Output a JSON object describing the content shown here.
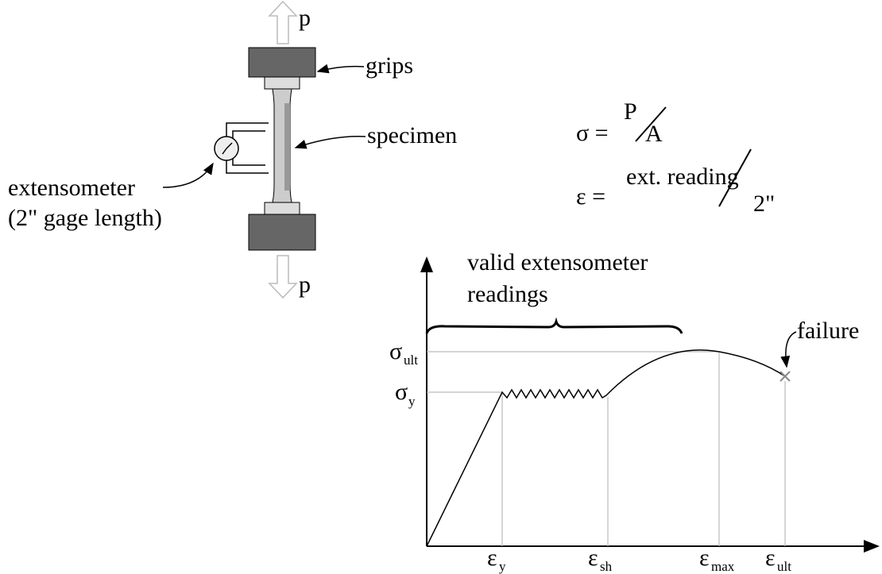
{
  "specimen": {
    "load_top": "p",
    "load_bottom": "p",
    "grips": "grips",
    "specimen": "specimen",
    "extensometer": "extensometer",
    "gage_length": "(2\" gage length)"
  },
  "formulas": [
    {
      "lhs": "σ =",
      "numerator": "P",
      "denominator": "A"
    },
    {
      "lhs": "ε =",
      "numerator": "ext. reading",
      "denominator": "2\""
    }
  ],
  "graph": {
    "annotation": [
      "valid extensometer",
      "readings"
    ],
    "failure": "failure",
    "y_labels": [
      {
        "symbol": "σ",
        "subscript": "ult"
      },
      {
        "symbol": "σ",
        "subscript": "y"
      }
    ],
    "x_labels": [
      {
        "symbol": "ε",
        "subscript": "y"
      },
      {
        "symbol": "ε",
        "subscript": "sh"
      },
      {
        "symbol": "ε",
        "subscript": "max"
      },
      {
        "symbol": "ε",
        "subscript": "ult"
      }
    ]
  }
}
